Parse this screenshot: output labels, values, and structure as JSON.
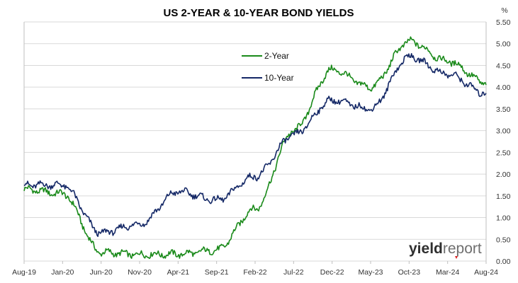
{
  "chart_data": {
    "type": "line",
    "title": "US 2-YEAR & 10-YEAR BOND YIELDS",
    "ylabel": "%",
    "xlabel": "",
    "ylim": [
      0,
      5.5
    ],
    "yticks": [
      "0.00",
      "0.50",
      "1.00",
      "1.50",
      "2.00",
      "2.50",
      "3.00",
      "3.50",
      "4.00",
      "4.50",
      "5.00",
      "5.50"
    ],
    "x": [
      "Aug-19",
      "Jan-20",
      "Jun-20",
      "Nov-20",
      "Apr-21",
      "Sep-21",
      "Feb-22",
      "Jul-22",
      "Dec-22",
      "May-23",
      "Oct-23",
      "Mar-24",
      "Aug-24"
    ],
    "xticks": [
      "Aug-19",
      "Jan-20",
      "Jun-20",
      "Nov-20",
      "Apr-21",
      "Sep-21",
      "Feb-22",
      "Jul-22",
      "Dec-22",
      "May-23",
      "Oct-23",
      "Mar-24",
      "Aug-24"
    ],
    "grid": "horizontal",
    "legend": "top-center",
    "series": [
      {
        "name": "2-Year",
        "color": "#1a8a1a",
        "values": [
          1.65,
          1.55,
          0.2,
          0.15,
          0.16,
          0.25,
          1.2,
          3.0,
          4.4,
          4.0,
          5.05,
          4.6,
          4.1
        ]
      },
      {
        "name": "10-Year",
        "color": "#142866",
        "values": [
          1.75,
          1.75,
          0.65,
          0.85,
          1.6,
          1.4,
          1.95,
          2.9,
          3.7,
          3.5,
          4.7,
          4.3,
          3.85
        ]
      }
    ]
  },
  "logo": {
    "part1": "yield",
    "part2": "report"
  }
}
